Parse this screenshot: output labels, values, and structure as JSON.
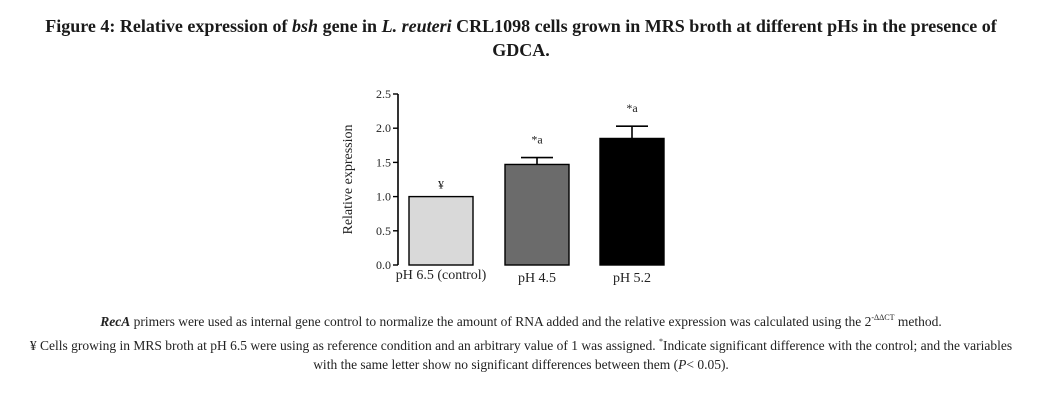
{
  "figure": {
    "label": "Figure 4:",
    "title_parts": [
      {
        "text": "Relative expression of ",
        "italic": false
      },
      {
        "text": "bsh",
        "italic": true
      },
      {
        "text": " gene in ",
        "italic": false
      },
      {
        "text": "L. reuteri",
        "italic": true
      },
      {
        "text": " CRL1098 cells grown in MRS broth at different pHs in the presence of GDCA.",
        "italic": false
      }
    ]
  },
  "chart_data": {
    "type": "bar",
    "ylabel": "Relative expression",
    "xlabel": "",
    "ylim": [
      0,
      2.5
    ],
    "yticks": [
      "0.0",
      "0.5",
      "1.0",
      "1.5",
      "2.0",
      "2.5"
    ],
    "categories": [
      "pH 6.5 (control)",
      "pH 4.5",
      "pH 5.2"
    ],
    "values": [
      1.0,
      1.47,
      1.85
    ],
    "error": [
      0,
      0.1,
      0.18
    ],
    "annotations": [
      "¥",
      "*a",
      "*a"
    ],
    "colors": [
      "#d9d9d9",
      "#6b6b6b",
      "#000000"
    ]
  },
  "notes": {
    "line1": {
      "gene": "RecA",
      "text": " primers were used as internal gene control to normalize the amount of RNA added and the relative expression was calculated using the 2",
      "sup": "-ΔΔCT",
      "end": " method."
    },
    "line2": {
      "symbol": "¥",
      "text": " Cells growing in MRS broth at pH 6.5 were using as reference condition and an arbitrary value of 1 was assigned. ",
      "star": "*",
      "text2": "Indicate significant difference with the control; and the variables with the same letter show no significant differences between them (",
      "p": "P",
      "end": "< 0.05)."
    }
  }
}
